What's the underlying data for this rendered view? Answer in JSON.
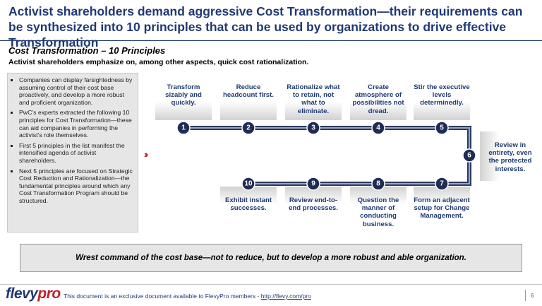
{
  "header": {
    "title": "Activist shareholders demand aggressive Cost Transformation—their requirements can be synthesized into 10 principles that can be used by organizations to drive effective Transformation",
    "subtitle": "Cost Transformation – 10 Principles",
    "subheading": "Activist shareholders emphasize on, among other aspects, quick cost rationalization."
  },
  "bullets": [
    "Companies can display farsightedness by assuming control of their cost base proactively, and develop a more robust and proficient organization.",
    "PwC’s experts extracted the following 10 principles for Cost Transformation—these can aid companies in performing the activist’s role themselves.",
    "First 5 principles in the list manifest the intensified agenda of activist shareholders.",
    "Next 5 principles are focused on Strategic Cost Reduction and Rationalization—the fundamental principles around which any Cost Transformation Program should be structured."
  ],
  "principles": [
    {
      "number": "1",
      "text": "Transform sizably and quickly."
    },
    {
      "number": "2",
      "text": "Reduce headcount first."
    },
    {
      "number": "3",
      "text": "Rationalize what to retain, not what to eliminate."
    },
    {
      "number": "4",
      "text": "Create atmosphere of possibilities not dread."
    },
    {
      "number": "5",
      "text": "Stir the executive levels determinedly."
    },
    {
      "number": "6",
      "text": "Review in entirety, even the protected interests."
    },
    {
      "number": "7",
      "text": "Form an adjacent setup for Change Management."
    },
    {
      "number": "8",
      "text": "Question the manner of conducting business."
    },
    {
      "number": "9",
      "text": "Review end-to-end processes."
    },
    {
      "number": "10",
      "text": "Exhibit instant successes."
    }
  ],
  "callout": "Wrest command of the cost base—not to reduce, but to develop a more robust and able organization.",
  "footer": {
    "logo_main": "flevy",
    "logo_accent": "pro",
    "text": "This document is an exclusive document available to FlevyPro members - ",
    "link": "http://flevy.com/pro",
    "page": "6"
  }
}
